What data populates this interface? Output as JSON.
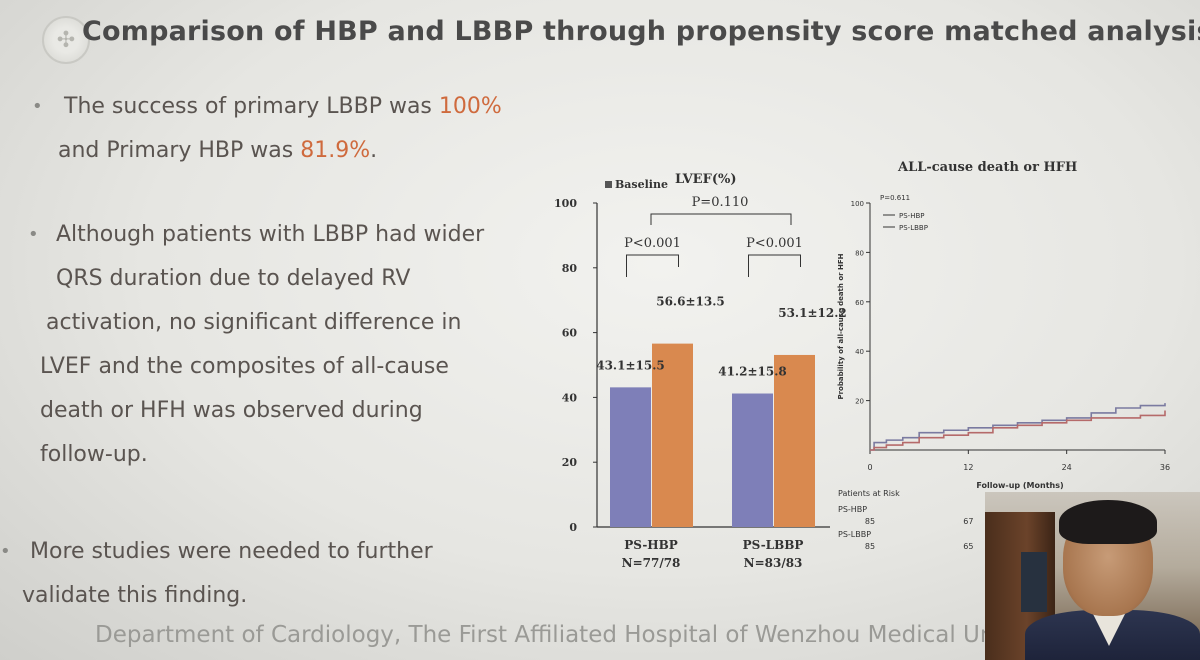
{
  "slide": {
    "title": "Comparison of HBP and LBBP through propensity score matched analysis",
    "footer": "Department of Cardiology, The First Affiliated Hospital of Wenzhou Medical Univ",
    "bullets": {
      "b1_line1_a": "The success of primary LBBP was ",
      "b1_line1_hl": "100%",
      "b1_line2_a": "and  Primary HBP was ",
      "b1_line2_hl": "81.9%",
      "b1_line2_b": ".",
      "b2_lines": [
        "Although patients with LBBP had wider",
        "QRS duration due to delayed RV",
        "activation, no significant difference in",
        "LVEF and the composites of all-cause",
        "death or HFH was observed during",
        "follow-up."
      ],
      "b3_lines": [
        "More studies were needed to further",
        "validate this finding."
      ]
    },
    "colors": {
      "highlight": "#cf6a3d",
      "baseline_bar": "#7e7fb8",
      "followup_bar": "#d9894f",
      "hbp_line": "#7a7aa0",
      "lbbp_line": "#b56a6a"
    }
  },
  "chart_data": [
    {
      "type": "bar",
      "title": "LVEF(%)",
      "legend": [
        "Baseline"
      ],
      "categories": [
        "PS-HBP",
        "PS-LBBP"
      ],
      "category_sub": [
        "N=77/78",
        "N=83/83"
      ],
      "series": [
        {
          "name": "Baseline",
          "values": [
            43.1,
            41.2
          ]
        },
        {
          "values": [
            56.6,
            53.1
          ]
        }
      ],
      "value_labels": [
        [
          "43.1±15.5",
          "56.6±13.5"
        ],
        [
          "41.2±15.8",
          "53.1±12.2"
        ]
      ],
      "annotations": [
        "P<0.001",
        "P<0.001",
        "P=0.110"
      ],
      "ylim": [
        0,
        100
      ],
      "yticks": [
        0,
        20,
        40,
        60,
        80,
        100
      ]
    },
    {
      "type": "line",
      "title": "ALL-cause death or HFH",
      "ylabel": "Probability of all-cause death or HFH",
      "xlabel": "Follow-up (Months)",
      "p_value": "P=0.611",
      "xlim": [
        0,
        36
      ],
      "ylim": [
        0,
        100
      ],
      "xticks": [
        0,
        12,
        24,
        36
      ],
      "yticks": [
        20,
        40,
        60,
        80,
        100
      ],
      "series": [
        {
          "name": "PS-HBP",
          "x": [
            0,
            0.5,
            2,
            4,
            6,
            9,
            12,
            15,
            18,
            21,
            24,
            27,
            30,
            33,
            36
          ],
          "y": [
            0,
            3,
            4,
            5,
            7,
            8,
            9,
            10,
            11,
            12,
            13,
            15,
            17,
            18,
            19
          ]
        },
        {
          "name": "PS-LBBP",
          "x": [
            0,
            0.5,
            2,
            4,
            6,
            9,
            12,
            15,
            18,
            21,
            24,
            27,
            30,
            33,
            36
          ],
          "y": [
            0,
            1,
            2,
            3,
            5,
            6,
            7,
            9,
            10,
            11,
            12,
            13,
            13,
            14,
            16
          ]
        }
      ],
      "risk_table": {
        "header": "Patients at Risk",
        "rows": [
          {
            "name": "PS-HBP",
            "values": [
              "85",
              "67"
            ]
          },
          {
            "name": "PS-LBBP",
            "values": [
              "85",
              "65"
            ]
          }
        ]
      }
    }
  ]
}
